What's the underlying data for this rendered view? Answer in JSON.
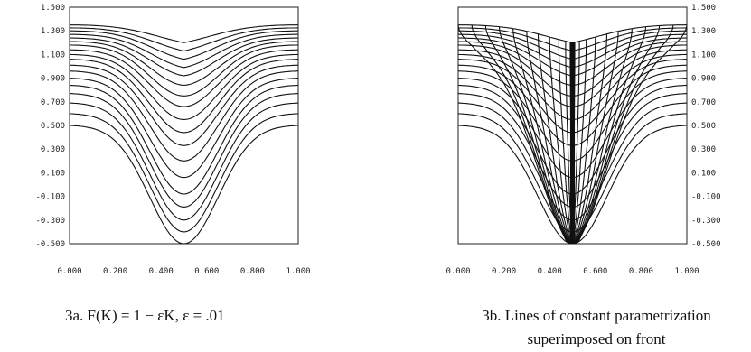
{
  "chart_data": [
    {
      "type": "line",
      "caption": "3a. F(K) = 1 − εK, ε = .01",
      "y_ticks": [
        "1.500",
        "1.300",
        "1.100",
        "0.900",
        "0.700",
        "0.500",
        "0.300",
        "0.100",
        "-0.100",
        "-0.300",
        "-0.500"
      ],
      "x_ticks": [
        "0.000",
        "0.200",
        "0.400",
        "0.600",
        "0.800",
        "1.000"
      ],
      "xlim": [
        0,
        1
      ],
      "ylim": [
        -0.5,
        1.5
      ],
      "ytick_side": "left",
      "fronts": {
        "count": 18,
        "edge_y": [
          1.35,
          1.325,
          1.3,
          1.27,
          1.24,
          1.21,
          1.18,
          1.14,
          1.1,
          1.06,
          1.01,
          0.96,
          0.9,
          0.84,
          0.77,
          0.69,
          0.6,
          0.5
        ],
        "center_y": [
          1.2,
          1.13,
          1.06,
          0.99,
          0.92,
          0.84,
          0.75,
          0.66,
          0.55,
          0.44,
          0.33,
          0.2,
          0.06,
          -0.08,
          -0.19,
          -0.3,
          -0.4,
          -0.5
        ]
      },
      "parametrization_lines": false
    },
    {
      "type": "line",
      "caption_lines": [
        "3b. Lines of constant parametrization",
        "superimposed on front"
      ],
      "y_ticks": [
        "1.500",
        "1.300",
        "1.100",
        "0.900",
        "0.700",
        "0.500",
        "0.300",
        "0.100",
        "-0.100",
        "-0.300",
        "-0.500"
      ],
      "x_ticks": [
        "0.000",
        "0.200",
        "0.400",
        "0.600",
        "0.800",
        "1.000"
      ],
      "xlim": [
        0,
        1
      ],
      "ylim": [
        -0.5,
        1.5
      ],
      "ytick_side": "right",
      "fronts": {
        "count": 18,
        "edge_y": [
          1.35,
          1.325,
          1.3,
          1.27,
          1.24,
          1.21,
          1.18,
          1.14,
          1.1,
          1.06,
          1.01,
          0.96,
          0.9,
          0.84,
          0.77,
          0.69,
          0.6,
          0.5
        ],
        "center_y": [
          1.2,
          1.13,
          1.06,
          0.99,
          0.92,
          0.84,
          0.75,
          0.66,
          0.55,
          0.44,
          0.33,
          0.2,
          0.06,
          -0.08,
          -0.19,
          -0.3,
          -0.4,
          -0.5
        ]
      },
      "parametrization_lines": true,
      "parametrization_x0": [
        0.0,
        0.06,
        0.12,
        0.18,
        0.24,
        0.3,
        0.35,
        0.4,
        0.44,
        0.47,
        0.49,
        0.51,
        0.53,
        0.56,
        0.6,
        0.65,
        0.7,
        0.76,
        0.82,
        0.88,
        0.94,
        1.0
      ]
    }
  ]
}
